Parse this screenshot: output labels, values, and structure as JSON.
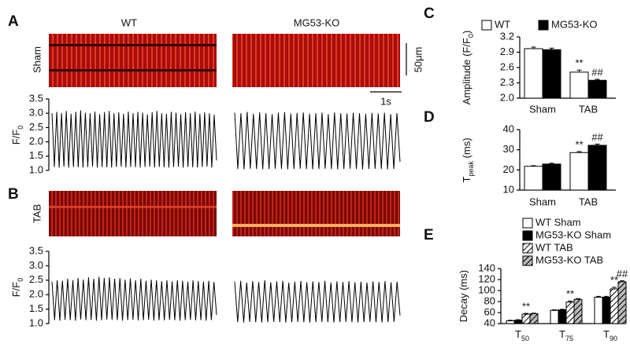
{
  "labels": {
    "panel_a": "A",
    "panel_b": "B",
    "panel_c": "C",
    "panel_d": "D",
    "panel_e": "E",
    "row_sham": "Sham",
    "row_tab": "TAB",
    "scale_um": "50μm",
    "scale_s": "1s"
  },
  "chart_data": [
    {
      "type": "trace",
      "ylabel": [
        "F/F",
        "0"
      ],
      "ylim": [
        1.0,
        3.5
      ],
      "yticks": [
        {
          "value": 1.0,
          "label": "1.0"
        },
        1.5,
        {
          "value": 2.0,
          "label": "2.0"
        },
        2.5,
        {
          "value": 3.0,
          "label": "3.0"
        },
        3.5
      ],
      "series": [
        {
          "name": "WT",
          "color": "#000",
          "values": [
            3.0,
            1.12,
            3.05,
            1.1,
            3.0,
            1.13,
            3.08,
            1.1,
            2.98,
            1.12,
            3.05,
            1.11,
            3.1,
            1.1,
            3.02,
            1.12,
            3.0,
            1.13,
            3.06,
            1.1,
            2.97,
            1.12,
            3.04,
            1.11,
            3.08,
            1.1,
            3.0,
            1.12,
            3.03,
            1.13,
            2.98,
            1.1,
            3.06,
            1.12,
            3.0,
            1.11,
            3.05,
            1.1,
            3.02,
            1.12,
            2.96,
            1.13,
            3.04,
            1.1,
            3.08,
            1.12,
            3.0,
            1.11,
            2.98,
            1.1,
            3.05,
            1.12,
            3.02,
            1.13,
            2.97,
            1.1,
            3.04,
            1.12,
            3.0,
            1.11,
            3.06,
            1.1,
            2.98,
            1.12,
            3.03,
            1.13,
            3.0,
            1.1,
            2.95,
            1.35
          ]
        },
        {
          "name": "MG53-KO",
          "color": "#000",
          "values": [
            3.02,
            1.05,
            3.0,
            1.04,
            3.05,
            1.06,
            2.98,
            1.05,
            3.03,
            1.04,
            3.0,
            1.05,
            2.97,
            1.06,
            3.02,
            1.05,
            3.04,
            1.04,
            2.99,
            1.05,
            3.01,
            1.06,
            3.03,
            1.05,
            2.98,
            1.04,
            3.0,
            1.05,
            3.02,
            1.06,
            2.97,
            1.05,
            3.03,
            1.04,
            3.0,
            1.05,
            2.99,
            1.06,
            3.02,
            1.05,
            3.0,
            1.04,
            2.98,
            1.05,
            3.01,
            1.06,
            2.99,
            1.05,
            3.02,
            1.04,
            2.97,
            1.05,
            3.0,
            1.3
          ]
        }
      ]
    },
    {
      "type": "trace",
      "ylabel": [
        "F/F",
        "0"
      ],
      "ylim": [
        1.0,
        3.5
      ],
      "yticks": [
        {
          "value": 1.0,
          "label": "1.0"
        },
        1.5,
        {
          "value": 2.0,
          "label": "2.0"
        },
        2.5,
        {
          "value": 3.0,
          "label": "3.0"
        },
        3.5
      ],
      "series": [
        {
          "color": "#000",
          "values": [
            2.45,
            1.12,
            2.5,
            1.1,
            2.48,
            1.13,
            2.55,
            1.12,
            2.5,
            1.1,
            2.58,
            1.14,
            2.52,
            1.12,
            2.6,
            1.13,
            2.55,
            1.1,
            2.62,
            1.12,
            2.58,
            1.14,
            2.6,
            1.13,
            2.55,
            1.12,
            2.58,
            1.1,
            2.52,
            1.12,
            2.56,
            1.13,
            2.5,
            1.11,
            2.55,
            1.12,
            2.48,
            1.13,
            2.52,
            1.1,
            2.5,
            1.12,
            2.47,
            1.11,
            2.5,
            1.13,
            2.46,
            1.12,
            2.5,
            1.1,
            2.48,
            1.12,
            2.45,
            1.13,
            2.5,
            1.11,
            2.47,
            1.12,
            2.45,
            1.1,
            2.48,
            1.12,
            2.44,
            1.3
          ]
        },
        {
          "color": "#000",
          "values": [
            2.45,
            1.05,
            2.48,
            1.04,
            2.42,
            1.06,
            2.47,
            1.05,
            2.44,
            1.04,
            2.5,
            1.05,
            2.43,
            1.06,
            2.46,
            1.05,
            2.48,
            1.04,
            2.42,
            1.05,
            2.45,
            1.06,
            2.47,
            1.05,
            2.43,
            1.04,
            2.46,
            1.05,
            2.44,
            1.06,
            2.48,
            1.05,
            2.42,
            1.04,
            2.46,
            1.05,
            2.44,
            1.06,
            2.47,
            1.05,
            2.43,
            1.04,
            2.45,
            1.05,
            2.42,
            1.06,
            2.46,
            1.05,
            2.44,
            1.04,
            2.47,
            1.05,
            2.43,
            1.06,
            2.45,
            1.28
          ]
        }
      ]
    },
    {
      "type": "bar",
      "legend": "top",
      "ylabel": [
        "Amplitude (F/F",
        "0",
        ")"
      ],
      "categories": [
        "Sham",
        "TAB"
      ],
      "ylim": [
        2.0,
        3.2
      ],
      "yticks": [
        {
          "value": 2.0,
          "label": "2.0"
        },
        2.3,
        2.6,
        2.9,
        3.2
      ],
      "series": [
        {
          "name": "WT",
          "color": "#ffffff",
          "values": [
            2.97,
            2.51
          ],
          "errors": [
            0.03,
            0.04
          ],
          "significance": [
            null,
            "**"
          ]
        },
        {
          "name": "MG53-KO",
          "color": "#000000",
          "values": [
            2.95,
            2.35
          ],
          "errors": [
            0.03,
            0.02
          ],
          "significance": [
            null,
            "##"
          ]
        }
      ]
    },
    {
      "type": "bar",
      "ylabel": [
        "T",
        "peak",
        " (ms)"
      ],
      "categories": [
        "Sham",
        "TAB"
      ],
      "ylim": [
        10,
        40
      ],
      "yticks": [
        10,
        20,
        30,
        40
      ],
      "series": [
        {
          "color": "#ffffff",
          "values": [
            21.8,
            28.6
          ],
          "errors": [
            0.3,
            0.5
          ],
          "significance": [
            null,
            "**"
          ]
        },
        {
          "color": "#000000",
          "values": [
            22.9,
            32.2
          ],
          "errors": [
            0.4,
            0.6
          ],
          "significance": [
            null,
            "##"
          ]
        }
      ]
    },
    {
      "type": "bar",
      "legend": "top-left",
      "ylabel": [
        "Decay (ms)"
      ],
      "categories": [
        [
          "T",
          "50"
        ],
        [
          "T",
          "75"
        ],
        [
          "T",
          "90"
        ]
      ],
      "ylim": [
        40,
        140
      ],
      "yticks": [
        40,
        60,
        80,
        100,
        120,
        140
      ],
      "series": [
        {
          "name": "WT Sham",
          "color": "#ffffff",
          "values": [
            45,
            64,
            88
          ],
          "errors": [
            1,
            1,
            1.5
          ],
          "significance": [
            null,
            null,
            null
          ]
        },
        {
          "name": "MG53-KO Sham",
          "color": "#000000",
          "values": [
            46,
            65,
            88
          ],
          "errors": [
            1,
            1,
            1.5
          ],
          "significance": [
            null,
            null,
            null
          ]
        },
        {
          "name": "WT TAB",
          "color": "#ffffff",
          "pattern": "hatch",
          "values": [
            57,
            79,
            103
          ],
          "errors": [
            1.5,
            2,
            3
          ],
          "significance": [
            "**",
            "**",
            "**"
          ]
        },
        {
          "name": "MG53-KO TAB",
          "color": "#bbbbbb",
          "pattern": "hatch",
          "values": [
            58,
            84,
            116
          ],
          "errors": [
            1,
            1.5,
            2
          ],
          "significance": [
            null,
            null,
            "##"
          ]
        }
      ]
    }
  ]
}
